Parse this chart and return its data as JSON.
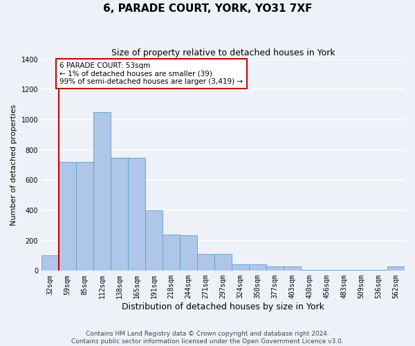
{
  "title": "6, PARADE COURT, YORK, YO31 7XF",
  "subtitle": "Size of property relative to detached houses in York",
  "xlabel": "Distribution of detached houses by size in York",
  "ylabel": "Number of detached properties",
  "categories": [
    "32sqm",
    "59sqm",
    "85sqm",
    "112sqm",
    "138sqm",
    "165sqm",
    "191sqm",
    "218sqm",
    "244sqm",
    "271sqm",
    "297sqm",
    "324sqm",
    "350sqm",
    "377sqm",
    "403sqm",
    "430sqm",
    "456sqm",
    "483sqm",
    "509sqm",
    "536sqm",
    "562sqm"
  ],
  "values": [
    100,
    720,
    720,
    1050,
    750,
    750,
    400,
    240,
    235,
    110,
    110,
    45,
    45,
    30,
    30,
    5,
    5,
    5,
    5,
    5,
    30
  ],
  "bar_color": "#aec6e8",
  "bar_edge_color": "#5a9fd4",
  "background_color": "#eef2f8",
  "grid_color": "#ffffff",
  "annotation_box_text": "6 PARADE COURT: 53sqm\n← 1% of detached houses are smaller (39)\n99% of semi-detached houses are larger (3,419) →",
  "annotation_box_color": "#ffffff",
  "annotation_box_edge_color": "#cc0000",
  "property_line_color": "#cc0000",
  "property_line_x": 1.5,
  "ylim": [
    0,
    1400
  ],
  "yticks": [
    0,
    200,
    400,
    600,
    800,
    1000,
    1200,
    1400
  ],
  "footnote": "Contains HM Land Registry data © Crown copyright and database right 2024.\nContains public sector information licensed under the Open Government Licence v3.0.",
  "title_fontsize": 11,
  "subtitle_fontsize": 9,
  "xlabel_fontsize": 9,
  "ylabel_fontsize": 8,
  "tick_fontsize": 7,
  "annot_fontsize": 7.5,
  "footnote_fontsize": 6.5
}
